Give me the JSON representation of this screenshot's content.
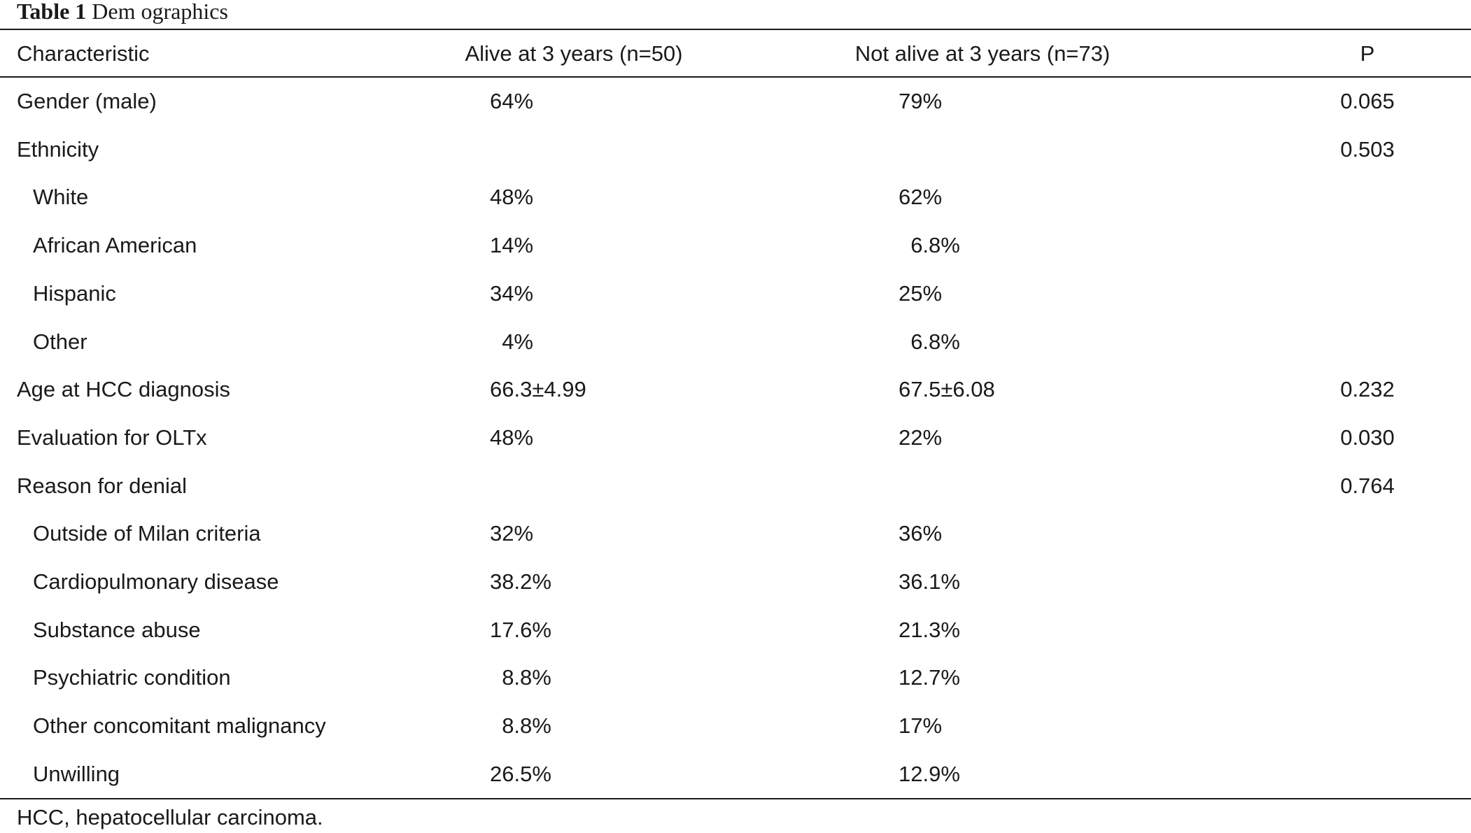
{
  "table": {
    "caption_label": "Table 1",
    "caption_text": "Dem ographics",
    "headers": [
      "Characteristic",
      "Alive at 3 years (n=50)",
      "Not alive at 3 years (n=73)",
      "P"
    ],
    "rows": [
      {
        "label": "Gender (male)",
        "alive": "64%",
        "not_alive": "79%",
        "p": "0.065"
      },
      {
        "label": "Ethnicity",
        "alive": "",
        "not_alive": "",
        "p": "0.503"
      },
      {
        "label": "White",
        "alive": "48%",
        "not_alive": "62%",
        "p": ""
      },
      {
        "label": "African American",
        "alive": "14%",
        "not_alive": "6.8%",
        "p": ""
      },
      {
        "label": "Hispanic",
        "alive": "34%",
        "not_alive": "25%",
        "p": ""
      },
      {
        "label": "Other",
        "alive": "4%",
        "not_alive": "6.8%",
        "p": ""
      },
      {
        "label": "Age at HCC diagnosis",
        "alive": "66.3±4.99",
        "not_alive": "67.5±6.08",
        "p": "0.232"
      },
      {
        "label": "Evaluation for OLTx",
        "alive": "48%",
        "not_alive": "22%",
        "p": "0.030"
      },
      {
        "label": "Reason for denial",
        "alive": "",
        "not_alive": "",
        "p": "0.764"
      },
      {
        "label": "Outside of Milan criteria",
        "alive": "32%",
        "not_alive": "36%",
        "p": ""
      },
      {
        "label": "Cardiopulmonary disease",
        "alive": "38.2%",
        "not_alive": "36.1%",
        "p": ""
      },
      {
        "label": "Substance abuse",
        "alive": "17.6%",
        "not_alive": "21.3%",
        "p": ""
      },
      {
        "label": "Psychiatric condition",
        "alive": "8.8%",
        "not_alive": "12.7%",
        "p": ""
      },
      {
        "label": "Other concomitant malignancy",
        "alive": "8.8%",
        "not_alive": "17%",
        "p": ""
      },
      {
        "label": "Unwilling",
        "alive": "26.5%",
        "not_alive": "12.9%",
        "p": ""
      }
    ],
    "footnote": "HCC, hepatocellular carcinoma."
  }
}
